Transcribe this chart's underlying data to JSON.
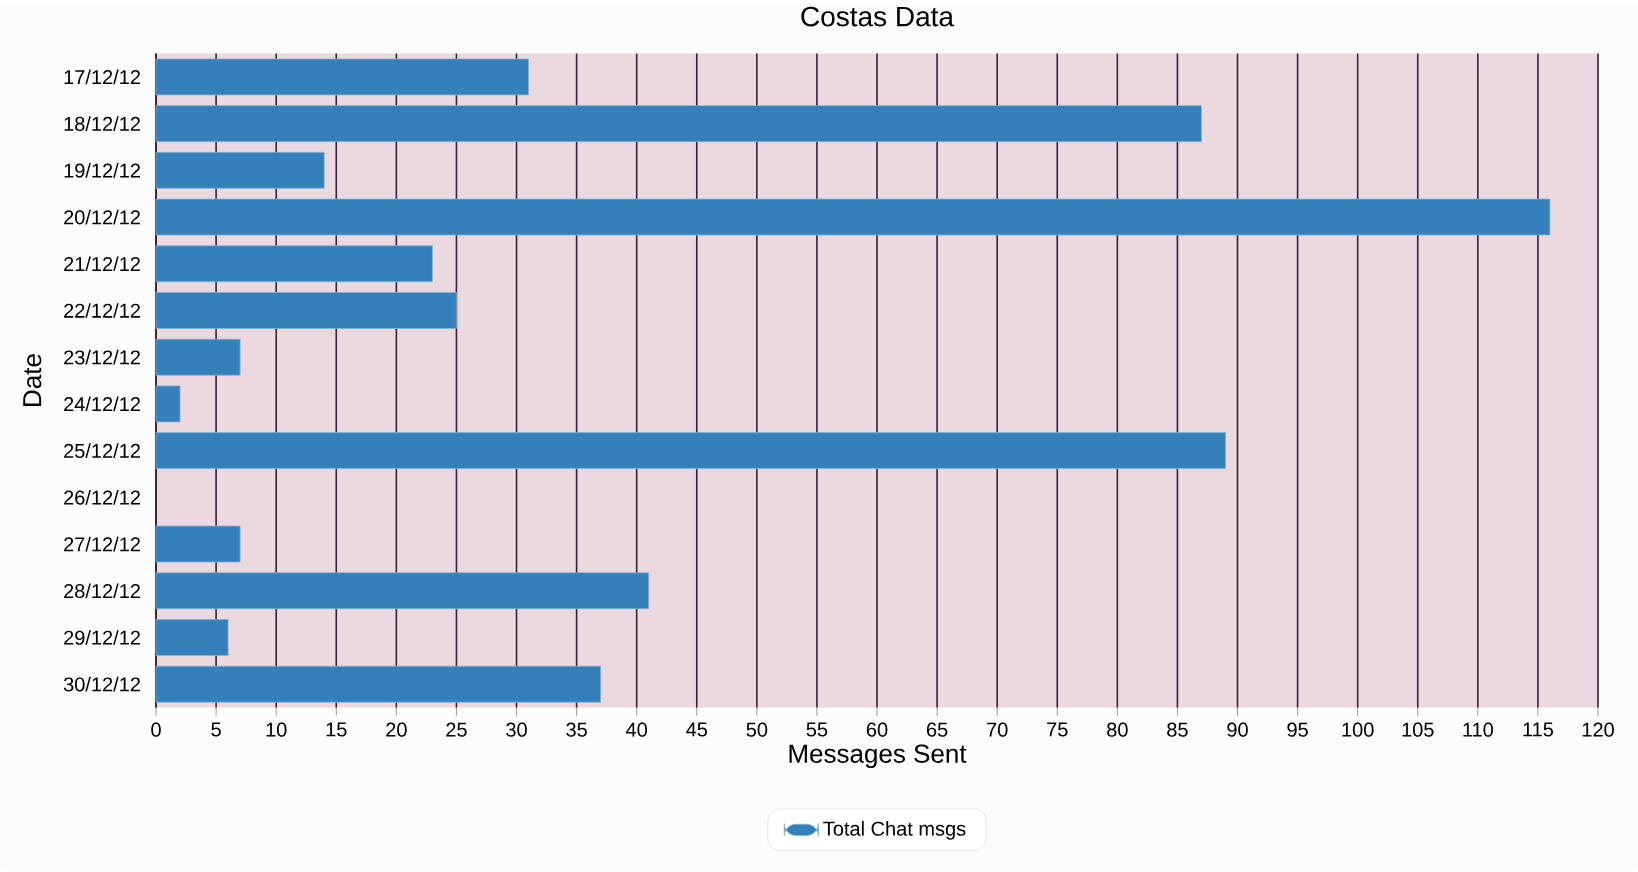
{
  "chart_data": {
    "type": "bar",
    "orientation": "horizontal",
    "title": "Costas Data",
    "xlabel": "Messages Sent",
    "ylabel": "Date",
    "categories": [
      "17/12/12",
      "18/12/12",
      "19/12/12",
      "20/12/12",
      "21/12/12",
      "22/12/12",
      "23/12/12",
      "24/12/12",
      "25/12/12",
      "26/12/12",
      "27/12/12",
      "28/12/12",
      "29/12/12",
      "30/12/12"
    ],
    "series": [
      {
        "name": "Total Chat msgs",
        "color": "#3380bb",
        "values": [
          31,
          87,
          14,
          116,
          23,
          25,
          7,
          2,
          89,
          null,
          7,
          41,
          6,
          37
        ]
      }
    ],
    "xlim": [
      0,
      120
    ],
    "xticks": [
      0,
      5,
      10,
      15,
      20,
      25,
      30,
      35,
      40,
      45,
      50,
      55,
      60,
      65,
      70,
      75,
      80,
      85,
      90,
      95,
      100,
      105,
      110,
      115,
      120
    ],
    "grid": "x",
    "legend": "bottom"
  }
}
